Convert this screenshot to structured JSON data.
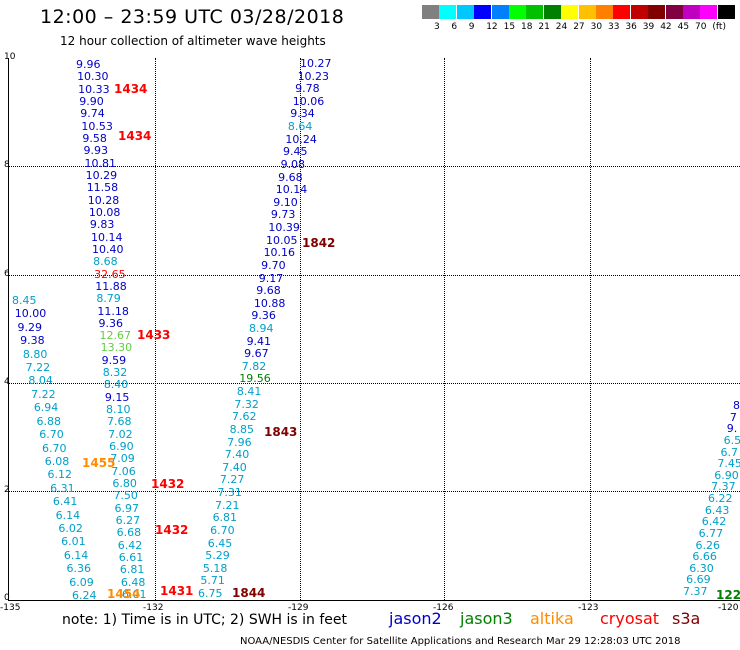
{
  "title": "12:00 – 23:59 UTC 03/28/2018",
  "subtitle": "12 hour collection of altimeter wave heights",
  "legend": {
    "colors": [
      "#808080",
      "#00ffff",
      "#00c8ff",
      "#0000ff",
      "#0080ff",
      "#00ff00",
      "#00c000",
      "#008000",
      "#ffff00",
      "#ffc000",
      "#ff8000",
      "#ff0000",
      "#c00000",
      "#800000",
      "#800040",
      "#c000c0",
      "#ff00ff",
      "#000000"
    ],
    "labels": [
      "3",
      "6",
      "9",
      "12",
      "15",
      "18",
      "21",
      "24",
      "27",
      "30",
      "33",
      "36",
      "39",
      "42",
      "45",
      "70",
      "(ft)"
    ]
  },
  "y_ticks": [
    "10",
    "8",
    "6",
    "4",
    "2",
    "0"
  ],
  "x_ticks": [
    "-135",
    "-132",
    "-129",
    "-126",
    "-123",
    "-120"
  ],
  "value_colors": {
    "2": "#00a0c8",
    "1": "#0000c8",
    "g": "#00c000",
    "G": "#60d040",
    "d": "#008000",
    "r": "#ff0000"
  },
  "values": {
    "track1": [
      [
        "9.96",
        "1"
      ],
      [
        "10.30",
        "1"
      ],
      [
        "10.33",
        "1"
      ],
      [
        "9.90",
        "1"
      ],
      [
        "9.74",
        "1"
      ],
      [
        "10.53",
        "1"
      ],
      [
        "9.58",
        "1"
      ],
      [
        "9.93",
        "1"
      ],
      [
        "10.81",
        "1"
      ],
      [
        "10.29",
        "1"
      ],
      [
        "11.58",
        "1"
      ],
      [
        "10.28",
        "1"
      ],
      [
        "10.08",
        "1"
      ],
      [
        "9.83",
        "1"
      ],
      [
        "10.14",
        "1"
      ],
      [
        "10.40",
        "1"
      ],
      [
        "8.68",
        "2"
      ],
      [
        "32.65",
        "r"
      ],
      [
        "11.88",
        "1"
      ],
      [
        "8.79",
        "2"
      ],
      [
        "11.18",
        "1"
      ],
      [
        "9.36",
        "1"
      ],
      [
        "12.67",
        "G"
      ],
      [
        "13.30",
        "G"
      ],
      [
        "9.59",
        "1"
      ],
      [
        "8.32",
        "2"
      ],
      [
        "8.40",
        "2"
      ],
      [
        "9.15",
        "1"
      ],
      [
        "8.10",
        "2"
      ],
      [
        "7.68",
        "2"
      ],
      [
        "7.02",
        "2"
      ],
      [
        "6.90",
        "2"
      ],
      [
        "7.09",
        "2"
      ],
      [
        "7.06",
        "2"
      ],
      [
        "6.80",
        "2"
      ],
      [
        "7.50",
        "2"
      ],
      [
        "6.97",
        "2"
      ],
      [
        "6.27",
        "2"
      ],
      [
        "6.68",
        "2"
      ],
      [
        "6.42",
        "2"
      ],
      [
        "6.61",
        "2"
      ],
      [
        "6.81",
        "2"
      ],
      [
        "6.48",
        "2"
      ],
      [
        "6.01",
        "2"
      ]
    ],
    "track0": [
      [
        "8.45",
        "2"
      ],
      [
        "10.00",
        "1"
      ],
      [
        "9.29",
        "1"
      ],
      [
        "9.38",
        "1"
      ],
      [
        "8.80",
        "2"
      ],
      [
        "7.22",
        "2"
      ],
      [
        "8.04",
        "2"
      ],
      [
        "7.22",
        "2"
      ],
      [
        "6.94",
        "2"
      ],
      [
        "6.88",
        "2"
      ],
      [
        "6.70",
        "2"
      ],
      [
        "6.70",
        "2"
      ],
      [
        "6.08",
        "2"
      ],
      [
        "6.12",
        "2"
      ],
      [
        "6.31",
        "2"
      ],
      [
        "6.41",
        "2"
      ],
      [
        "6.14",
        "2"
      ],
      [
        "6.02",
        "2"
      ],
      [
        "6.01",
        "2"
      ],
      [
        "6.14",
        "2"
      ],
      [
        "6.36",
        "2"
      ],
      [
        "6.09",
        "2"
      ],
      [
        "6.24",
        "2"
      ]
    ],
    "track2": [
      [
        "10.27",
        "1"
      ],
      [
        "10.23",
        "1"
      ],
      [
        "9.78",
        "1"
      ],
      [
        "10.06",
        "1"
      ],
      [
        "9.34",
        "1"
      ],
      [
        "8.64",
        "2"
      ],
      [
        "10.24",
        "1"
      ],
      [
        "9.45",
        "1"
      ],
      [
        "9.08",
        "1"
      ],
      [
        "9.68",
        "1"
      ],
      [
        "10.14",
        "1"
      ],
      [
        "9.10",
        "1"
      ],
      [
        "9.73",
        "1"
      ],
      [
        "10.39",
        "1"
      ],
      [
        "10.05",
        "1"
      ],
      [
        "10.16",
        "1"
      ],
      [
        "9.70",
        "1"
      ],
      [
        "9.17",
        "1"
      ],
      [
        "9.68",
        "1"
      ],
      [
        "10.88",
        "1"
      ],
      [
        "9.36",
        "1"
      ],
      [
        "8.94",
        "2"
      ],
      [
        "9.41",
        "1"
      ],
      [
        "9.67",
        "1"
      ],
      [
        "7.82",
        "2"
      ],
      [
        "19.56",
        "d"
      ],
      [
        "8.41",
        "2"
      ],
      [
        "7.32",
        "2"
      ],
      [
        "7.62",
        "2"
      ],
      [
        "8.85",
        "2"
      ],
      [
        "7.96",
        "2"
      ],
      [
        "7.40",
        "2"
      ],
      [
        "7.40",
        "2"
      ],
      [
        "7.27",
        "2"
      ],
      [
        "7.31",
        "2"
      ],
      [
        "7.21",
        "2"
      ],
      [
        "6.81",
        "2"
      ],
      [
        "6.70",
        "2"
      ],
      [
        "6.45",
        "2"
      ],
      [
        "5.29",
        "2"
      ],
      [
        "5.18",
        "2"
      ],
      [
        "5.71",
        "2"
      ],
      [
        "6.75",
        "2"
      ]
    ],
    "track3": [
      [
        "8",
        "1"
      ],
      [
        "7",
        "1"
      ],
      [
        "9.",
        "1"
      ],
      [
        "6.5",
        "2"
      ],
      [
        "6.7",
        "2"
      ],
      [
        "7.45",
        "2"
      ],
      [
        "6.90",
        "2"
      ],
      [
        "7.37",
        "2"
      ],
      [
        "6.22",
        "2"
      ],
      [
        "6.43",
        "2"
      ],
      [
        "6.42",
        "2"
      ],
      [
        "6.77",
        "2"
      ],
      [
        "6.26",
        "2"
      ],
      [
        "6.66",
        "2"
      ],
      [
        "6.30",
        "2"
      ],
      [
        "6.69",
        "2"
      ],
      [
        "7.37",
        "2"
      ]
    ]
  },
  "pass_labels": [
    {
      "text": "1434",
      "color": "#ff0000"
    },
    {
      "text": "1434",
      "color": "#ff0000"
    },
    {
      "text": "1433",
      "color": "#ff0000"
    },
    {
      "text": "1455",
      "color": "#ff8c00"
    },
    {
      "text": "1432",
      "color": "#ff0000"
    },
    {
      "text": "1432",
      "color": "#ff0000"
    },
    {
      "text": "1431",
      "color": "#ff0000"
    },
    {
      "text": "1454",
      "color": "#ff8c00"
    },
    {
      "text": "1844",
      "color": "#800000"
    },
    {
      "text": "1843",
      "color": "#800000"
    },
    {
      "text": "1842",
      "color": "#800000"
    },
    {
      "text": "122",
      "color": "#008000"
    }
  ],
  "note": "note:  1) Time is in UTC;  2) SWH is in feet",
  "satellites": [
    {
      "name": "jason2",
      "color": "#0000c8"
    },
    {
      "name": "jason3",
      "color": "#008000"
    },
    {
      "name": "altika",
      "color": "#ff8c00"
    },
    {
      "name": "cryosat",
      "color": "#ff0000"
    },
    {
      "name": "s3a",
      "color": "#800000"
    }
  ],
  "footer": "NOAA/NESDIS Center for Satellite Applications and Research    Mar 29 12:28:03 UTC 2018"
}
